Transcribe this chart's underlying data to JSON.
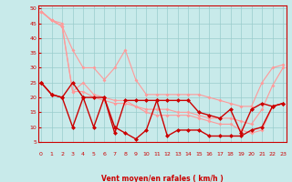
{
  "x": [
    0,
    1,
    2,
    3,
    4,
    5,
    6,
    7,
    8,
    9,
    10,
    11,
    12,
    13,
    14,
    15,
    16,
    17,
    18,
    19,
    20,
    21,
    22,
    23
  ],
  "series": [
    {
      "color": "#ff9999",
      "linewidth": 0.8,
      "markersize": 2.0,
      "y": [
        49,
        46,
        45,
        null,
        null,
        null,
        null,
        null,
        null,
        null,
        null,
        null,
        null,
        null,
        null,
        null,
        null,
        null,
        null,
        null,
        null,
        null,
        null,
        null
      ]
    },
    {
      "color": "#ff9999",
      "linewidth": 0.8,
      "markersize": 2.0,
      "y": [
        49,
        46,
        44,
        36,
        30,
        30,
        26,
        30,
        36,
        26,
        21,
        21,
        21,
        21,
        21,
        21,
        20,
        19,
        18,
        17,
        17,
        25,
        30,
        31
      ]
    },
    {
      "color": "#ff9999",
      "linewidth": 0.8,
      "markersize": 2.0,
      "y": [
        49,
        46,
        44,
        22,
        25,
        21,
        20,
        19,
        19,
        17,
        16,
        16,
        16,
        15,
        15,
        14,
        13,
        13,
        13,
        12,
        11,
        16,
        24,
        30
      ]
    },
    {
      "color": "#ff9999",
      "linewidth": 0.8,
      "markersize": 2.0,
      "y": [
        49,
        46,
        44,
        22,
        22,
        20,
        19,
        18,
        18,
        17,
        15,
        14,
        14,
        14,
        14,
        13,
        12,
        11,
        11,
        9,
        8,
        9,
        17,
        18
      ]
    },
    {
      "color": "#cc0000",
      "linewidth": 1.0,
      "markersize": 2.5,
      "y": [
        25,
        21,
        20,
        25,
        20,
        20,
        20,
        8,
        19,
        19,
        19,
        19,
        19,
        19,
        19,
        15,
        14,
        13,
        16,
        8,
        16,
        18,
        17,
        18
      ]
    },
    {
      "color": "#cc0000",
      "linewidth": 1.0,
      "markersize": 2.5,
      "y": [
        25,
        21,
        20,
        10,
        20,
        10,
        20,
        10,
        8,
        6,
        9,
        19,
        7,
        9,
        9,
        9,
        7,
        7,
        7,
        7,
        9,
        10,
        17,
        18
      ]
    }
  ],
  "xlabel": "Vent moyen/en rafales ( km/h )",
  "ylim": [
    5,
    51
  ],
  "xlim": [
    -0.3,
    23.3
  ],
  "yticks": [
    5,
    10,
    15,
    20,
    25,
    30,
    35,
    40,
    45,
    50
  ],
  "xticks": [
    0,
    1,
    2,
    3,
    4,
    5,
    6,
    7,
    8,
    9,
    10,
    11,
    12,
    13,
    14,
    15,
    16,
    17,
    18,
    19,
    20,
    21,
    22,
    23
  ],
  "bg_color": "#c8eaea",
  "grid_color": "#99cccc",
  "xlabel_color": "#cc0000",
  "tick_color": "#cc0000"
}
